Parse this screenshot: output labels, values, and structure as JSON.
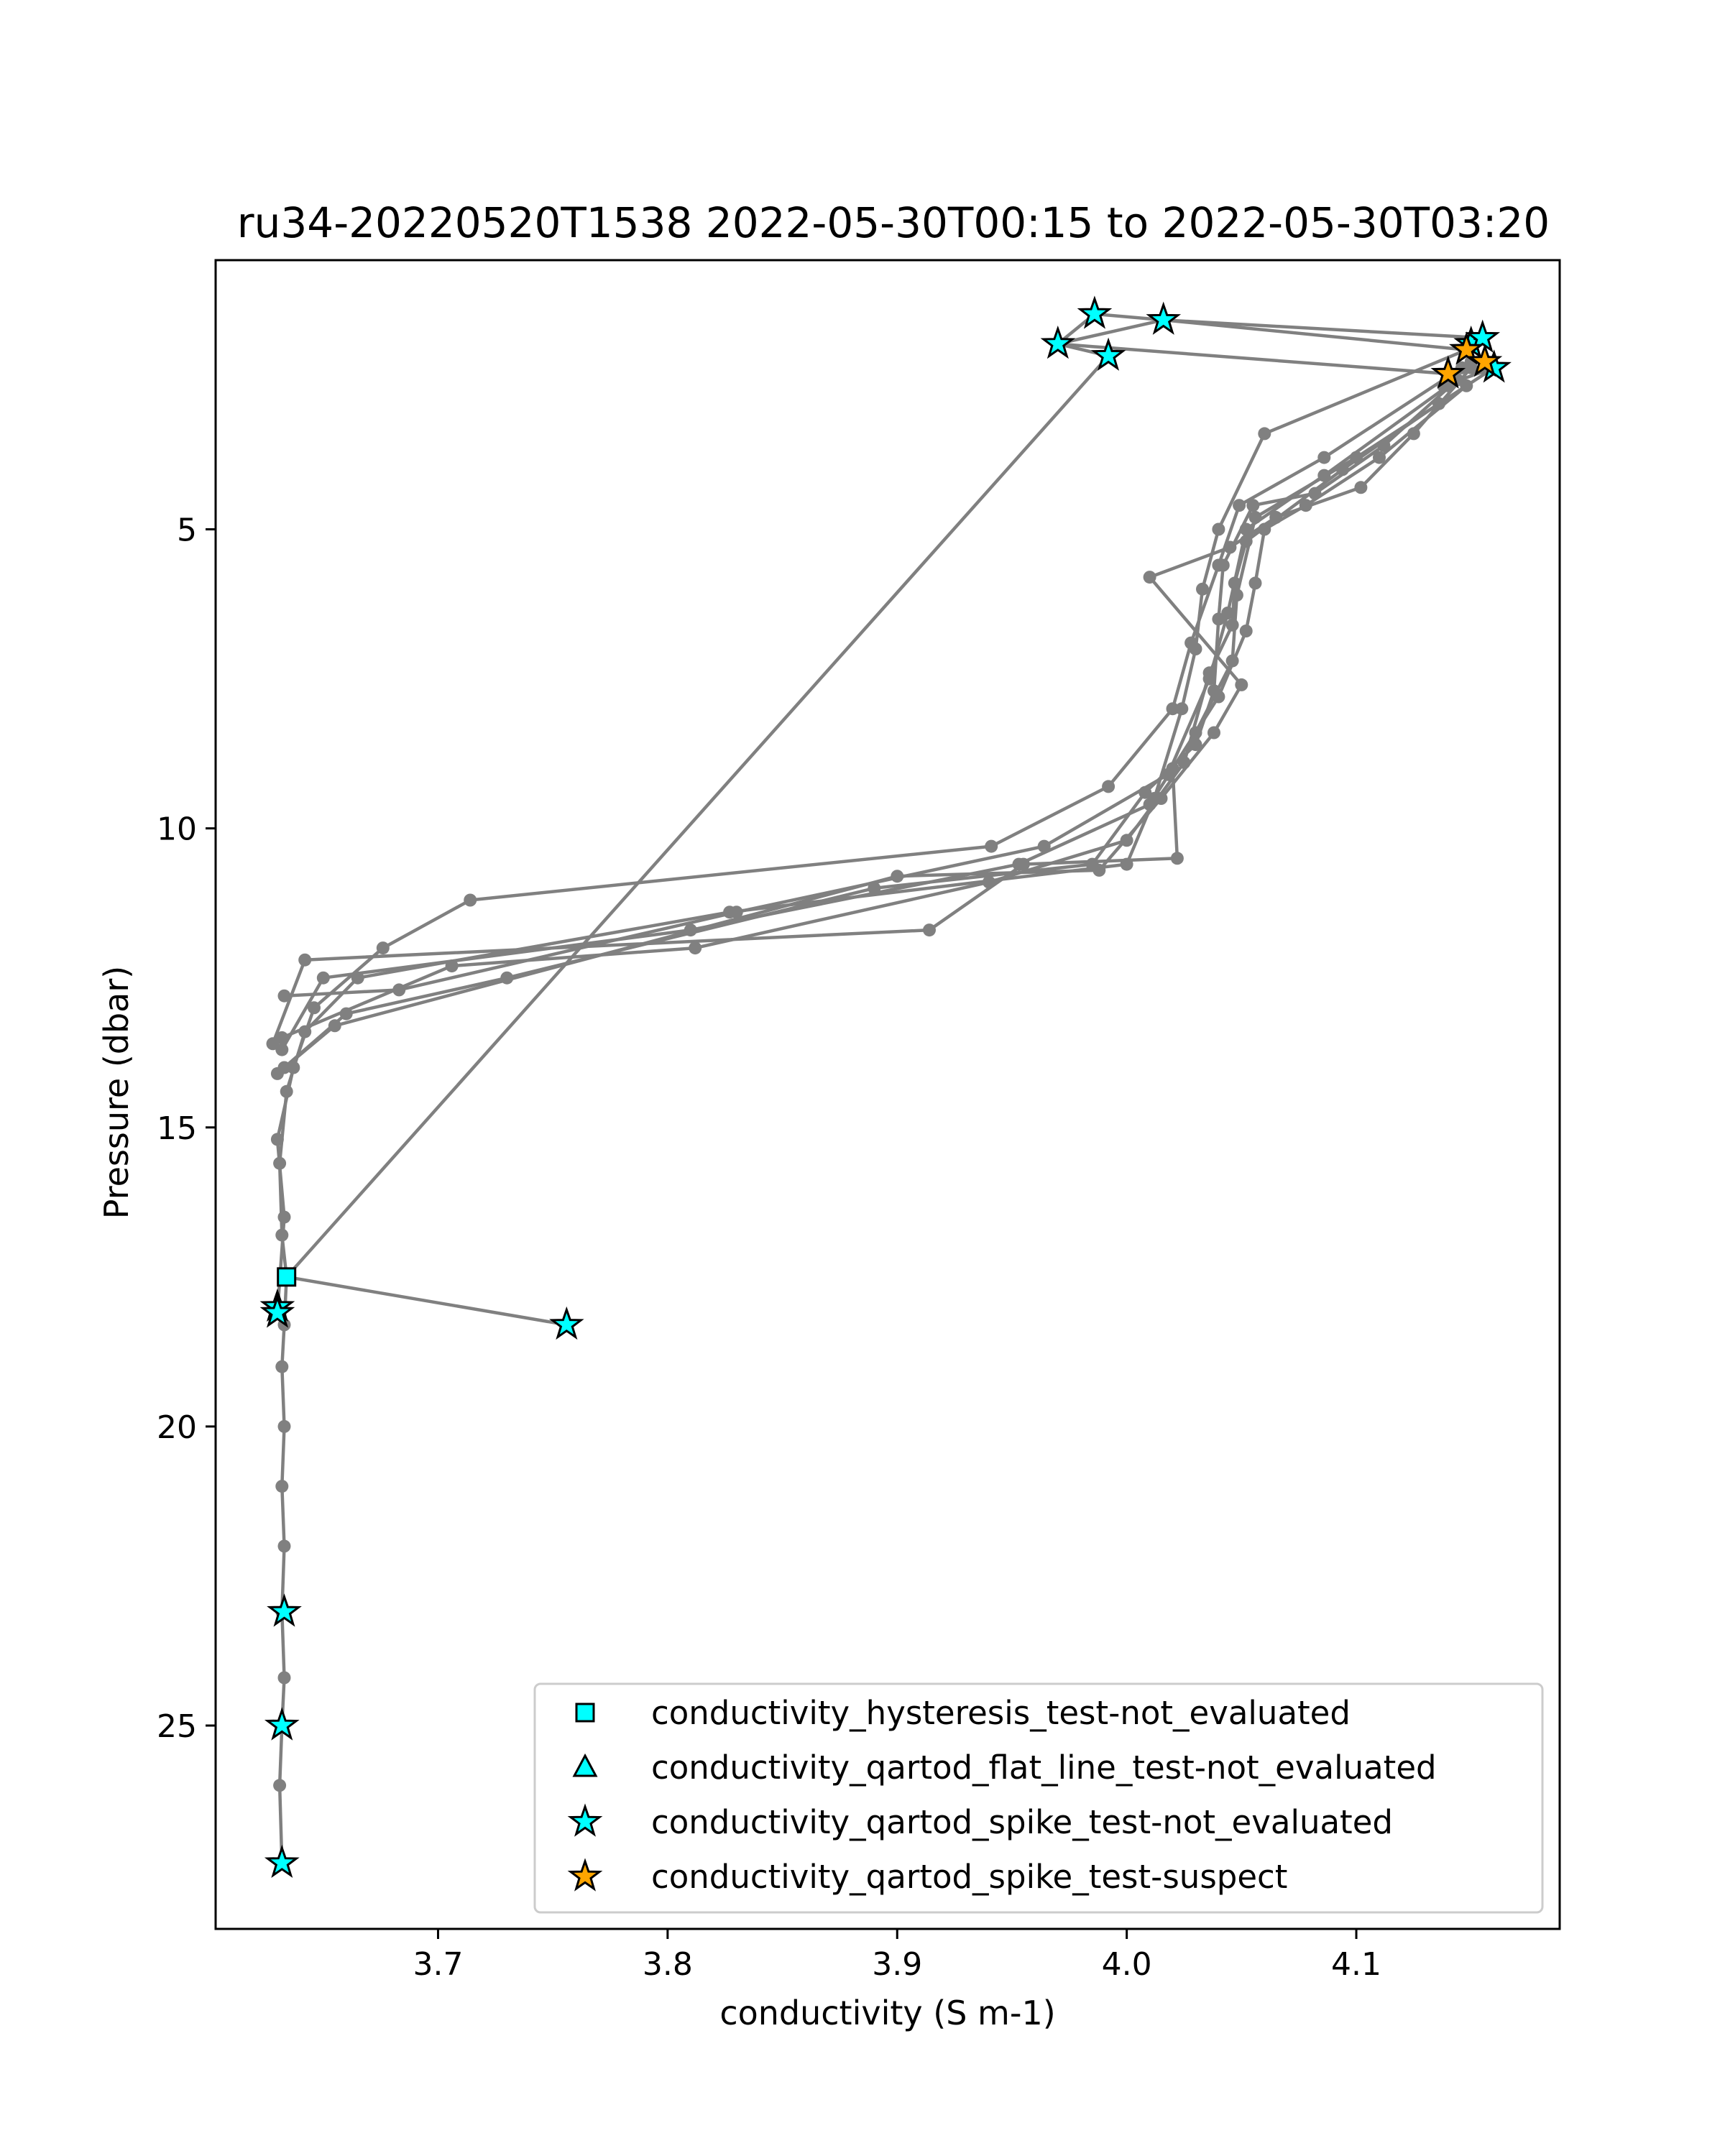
{
  "chart_data": {
    "type": "scatter",
    "title": "ru34-20220520T1538 2022-05-30T00:15 to 2022-05-30T03:20",
    "xlabel": "conductivity (S m-1)",
    "ylabel": "Pressure (dbar)",
    "xlim": [
      3.6031,
      4.1886
    ],
    "ylim": [
      28.4,
      0.5
    ],
    "y_inverted": true,
    "grid": false,
    "legend_position": "lower right",
    "xticks": [
      3.7,
      3.8,
      3.9,
      4.0,
      4.1
    ],
    "xtick_labels": [
      "3.7",
      "3.8",
      "3.9",
      "4.0",
      "4.1"
    ],
    "yticks": [
      5,
      10,
      15,
      20,
      25
    ],
    "ytick_labels": [
      "5",
      "10",
      "15",
      "20",
      "25"
    ],
    "line_color": "#808080",
    "profiles": [
      [
        [
          3.632,
          27.3
        ],
        [
          3.631,
          26.0
        ],
        [
          3.632,
          25.0
        ],
        [
          3.633,
          24.2
        ],
        [
          3.632,
          23.1
        ],
        [
          3.633,
          22.0
        ],
        [
          3.632,
          21.0
        ],
        [
          3.633,
          20.0
        ],
        [
          3.632,
          19.0
        ],
        [
          3.633,
          18.3
        ],
        [
          3.634,
          17.5
        ],
        [
          3.992,
          2.1
        ],
        [
          3.97,
          1.9
        ],
        [
          4.016,
          1.5
        ],
        [
          4.148,
          2.0
        ],
        [
          4.06,
          3.4
        ],
        [
          4.04,
          5.0
        ],
        [
          4.033,
          6.0
        ],
        [
          4.03,
          7.0
        ],
        [
          4.024,
          8.0
        ],
        [
          4.012,
          9.5
        ],
        [
          4.0,
          10.6
        ],
        [
          3.827,
          11.4
        ],
        [
          3.665,
          12.5
        ],
        [
          3.642,
          13.4
        ],
        [
          3.634,
          14.4
        ],
        [
          3.631,
          15.6
        ],
        [
          3.632,
          16.8
        ],
        [
          3.634,
          17.5
        ]
      ],
      [
        [
          3.634,
          17.5
        ],
        [
          3.756,
          18.3
        ]
      ],
      [
        [
          3.63,
          18.1
        ],
        [
          3.633,
          16.5
        ],
        [
          3.63,
          15.2
        ],
        [
          3.637,
          14.0
        ],
        [
          3.646,
          13.0
        ],
        [
          3.676,
          12.0
        ],
        [
          3.714,
          11.2
        ],
        [
          3.941,
          10.3
        ],
        [
          3.992,
          9.3
        ],
        [
          4.02,
          8.0
        ],
        [
          4.028,
          6.9
        ],
        [
          4.04,
          5.6
        ],
        [
          4.049,
          4.6
        ],
        [
          4.086,
          3.8
        ],
        [
          4.15,
          2.2
        ],
        [
          4.14,
          2.4
        ],
        [
          3.97,
          1.9
        ],
        [
          3.986,
          1.4
        ],
        [
          4.016,
          1.5
        ],
        [
          4.155,
          1.8
        ]
      ],
      [
        [
          3.633,
          12.8
        ],
        [
          3.683,
          12.7
        ],
        [
          3.83,
          11.4
        ],
        [
          3.964,
          10.3
        ],
        [
          4.018,
          9.1
        ],
        [
          4.036,
          7.5
        ],
        [
          4.044,
          6.4
        ],
        [
          4.052,
          5.0
        ],
        [
          4.086,
          4.1
        ],
        [
          4.14,
          2.6
        ],
        [
          4.146,
          2.3
        ]
      ],
      [
        [
          3.632,
          13.7
        ],
        [
          3.65,
          12.5
        ],
        [
          3.81,
          11.7
        ],
        [
          3.953,
          10.6
        ],
        [
          4.01,
          9.6
        ],
        [
          4.03,
          8.4
        ],
        [
          4.046,
          7.2
        ],
        [
          4.048,
          6.1
        ],
        [
          4.056,
          4.8
        ],
        [
          4.1,
          3.8
        ],
        [
          4.16,
          2.3
        ],
        [
          4.138,
          2.6
        ]
      ],
      [
        [
          3.628,
          13.6
        ],
        [
          3.642,
          12.2
        ],
        [
          3.914,
          11.7
        ],
        [
          3.955,
          10.6
        ],
        [
          4.022,
          10.5
        ],
        [
          4.02,
          9.0
        ],
        [
          4.04,
          7.8
        ],
        [
          4.052,
          6.7
        ],
        [
          4.056,
          5.9
        ],
        [
          4.06,
          5.0
        ],
        [
          4.078,
          4.6
        ],
        [
          4.11,
          3.8
        ],
        [
          4.148,
          2.6
        ]
      ],
      [
        [
          3.632,
          13.5
        ],
        [
          3.706,
          12.3
        ],
        [
          3.812,
          12.0
        ],
        [
          3.94,
          10.9
        ],
        [
          4.0,
          10.2
        ],
        [
          4.025,
          8.9
        ],
        [
          4.036,
          7.4
        ],
        [
          4.046,
          6.6
        ],
        [
          4.047,
          5.9
        ],
        [
          4.052,
          5.2
        ],
        [
          4.094,
          4.0
        ],
        [
          4.136,
          2.9
        ]
      ],
      [
        [
          3.633,
          14.0
        ],
        [
          3.66,
          13.1
        ],
        [
          3.73,
          12.5
        ],
        [
          3.89,
          11.0
        ],
        [
          3.985,
          10.6
        ],
        [
          4.008,
          9.4
        ],
        [
          4.03,
          8.6
        ],
        [
          4.038,
          7.7
        ],
        [
          4.04,
          6.5
        ],
        [
          4.042,
          5.6
        ],
        [
          4.055,
          4.6
        ],
        [
          4.082,
          4.4
        ],
        [
          4.112,
          3.6
        ],
        [
          4.144,
          2.5
        ]
      ],
      [
        [
          3.63,
          14.1
        ],
        [
          3.655,
          13.3
        ],
        [
          3.9,
          10.8
        ],
        [
          3.988,
          10.7
        ],
        [
          4.015,
          9.5
        ],
        [
          4.038,
          8.4
        ],
        [
          4.05,
          7.6
        ],
        [
          4.01,
          5.8
        ],
        [
          4.045,
          5.3
        ],
        [
          4.065,
          4.8
        ],
        [
          4.102,
          4.3
        ],
        [
          4.125,
          3.4
        ],
        [
          4.15,
          2.3
        ]
      ]
    ],
    "flagged_points": [
      {
        "series": "conductivity_hysteresis_test-not_evaluated",
        "x": 3.634,
        "y": 17.5
      },
      {
        "series": "conductivity_qartod_spike_test-not_evaluated",
        "x": 3.97,
        "y": 1.9
      },
      {
        "series": "conductivity_qartod_spike_test-not_evaluated",
        "x": 3.986,
        "y": 1.4
      },
      {
        "series": "conductivity_qartod_spike_test-not_evaluated",
        "x": 3.992,
        "y": 2.1
      },
      {
        "series": "conductivity_qartod_spike_test-not_evaluated",
        "x": 4.016,
        "y": 1.5
      },
      {
        "series": "conductivity_qartod_spike_test-not_evaluated",
        "x": 4.15,
        "y": 1.9
      },
      {
        "series": "conductivity_qartod_spike_test-not_evaluated",
        "x": 4.155,
        "y": 1.8
      },
      {
        "series": "conductivity_qartod_spike_test-not_evaluated",
        "x": 4.16,
        "y": 2.3
      },
      {
        "series": "conductivity_qartod_spike_test-not_evaluated",
        "x": 3.63,
        "y": 18.0
      },
      {
        "series": "conductivity_qartod_spike_test-not_evaluated",
        "x": 3.63,
        "y": 18.1
      },
      {
        "series": "conductivity_qartod_spike_test-not_evaluated",
        "x": 3.756,
        "y": 18.3
      },
      {
        "series": "conductivity_qartod_spike_test-not_evaluated",
        "x": 3.633,
        "y": 23.1
      },
      {
        "series": "conductivity_qartod_spike_test-not_evaluated",
        "x": 3.632,
        "y": 25.0
      },
      {
        "series": "conductivity_qartod_spike_test-not_evaluated",
        "x": 3.632,
        "y": 27.3
      },
      {
        "series": "conductivity_qartod_spike_test-suspect",
        "x": 4.14,
        "y": 2.4
      },
      {
        "series": "conductivity_qartod_spike_test-suspect",
        "x": 4.148,
        "y": 2.0
      },
      {
        "series": "conductivity_qartod_spike_test-suspect",
        "x": 4.156,
        "y": 2.2
      }
    ],
    "legend": [
      {
        "label": "conductivity_hysteresis_test-not_evaluated",
        "marker": "square",
        "color": "#00ffff"
      },
      {
        "label": "conductivity_qartod_flat_line_test-not_evaluated",
        "marker": "triangle",
        "color": "#00ffff"
      },
      {
        "label": "conductivity_qartod_spike_test-not_evaluated",
        "marker": "star",
        "color": "#00ffff"
      },
      {
        "label": "conductivity_qartod_spike_test-suspect",
        "marker": "star",
        "color": "#ffa500"
      }
    ]
  }
}
